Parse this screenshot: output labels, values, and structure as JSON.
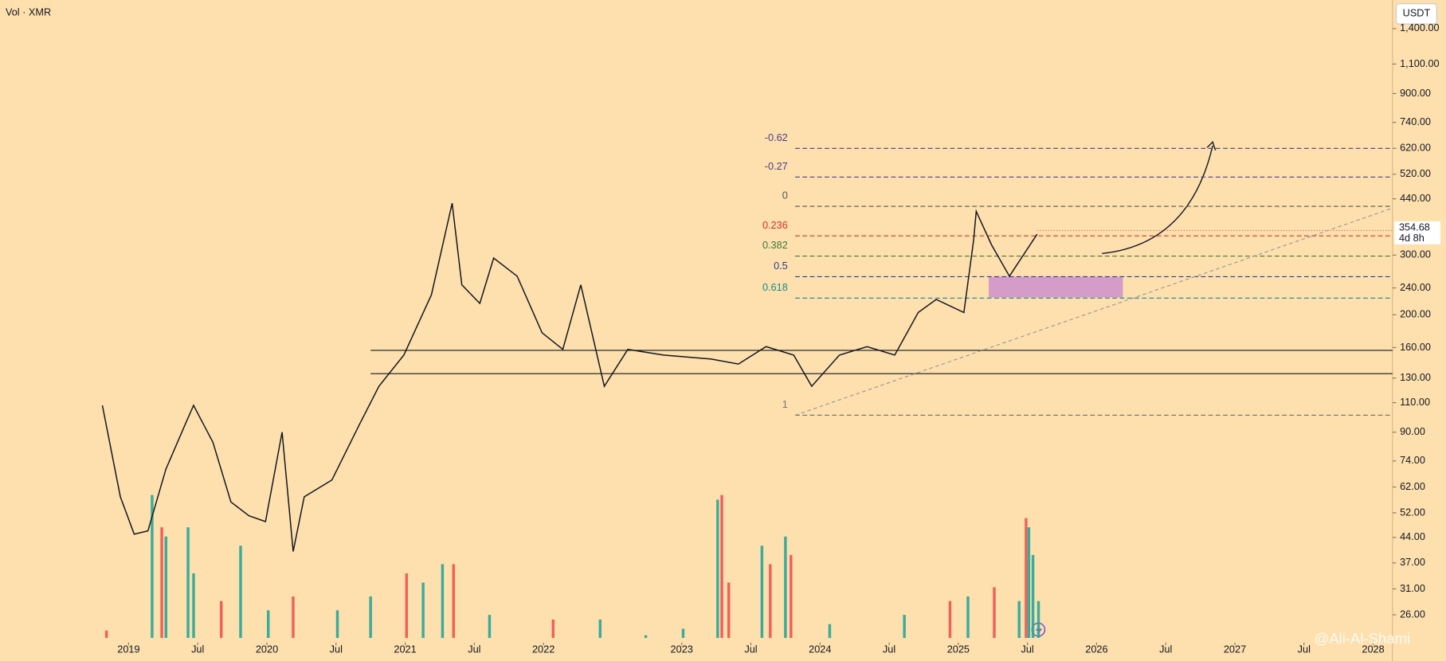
{
  "header": {
    "symbol": "Vol · XMR",
    "currency": "USDT",
    "watermark": "@Ali-Al-Shami"
  },
  "chart_data": {
    "type": "line",
    "color": "#131722",
    "log_scale": true,
    "x": [
      2018.81,
      2018.94,
      2019.04,
      2019.14,
      2019.27,
      2019.41,
      2019.47,
      2019.61,
      2019.74,
      2019.87,
      2019.99,
      2020.11,
      2020.19,
      2020.27,
      2020.47,
      2020.67,
      2020.81,
      2020.99,
      2021.19,
      2021.34,
      2021.41,
      2021.54,
      2021.64,
      2021.81,
      2021.99,
      2022.14,
      2022.27,
      2022.44,
      2022.61,
      2022.87,
      2023.21,
      2023.41,
      2023.61,
      2023.81,
      2023.94,
      2024.14,
      2024.34,
      2024.54,
      2024.71,
      2024.84,
      2025.04,
      2025.11,
      2025.13,
      2025.24,
      2025.37,
      2025.57
    ],
    "values": [
      108,
      58,
      45,
      46,
      70,
      95,
      108,
      84,
      56,
      51,
      49,
      90,
      40,
      58,
      65,
      95,
      123,
      152,
      229,
      427,
      245,
      216,
      294,
      260,
      177,
      158,
      245,
      123,
      158,
      152,
      148,
      143,
      161,
      152,
      123,
      152,
      161,
      152,
      203,
      222,
      203,
      331,
      404,
      322,
      260,
      346
    ],
    "xlim": [
      2018.07,
      2028.14
    ],
    "ylim": [
      21.8,
      1700
    ],
    "yticks": [
      {
        "value": 1400,
        "label": "1,400.00"
      },
      {
        "value": 1100,
        "label": "1,100.00"
      },
      {
        "value": 900,
        "label": "900.00"
      },
      {
        "value": 740,
        "label": "740.00"
      },
      {
        "value": 620,
        "label": "620.00"
      },
      {
        "value": 520,
        "label": "520.00"
      },
      {
        "value": 440,
        "label": "440.00"
      },
      {
        "value": 300,
        "label": "300.00"
      },
      {
        "value": 240,
        "label": "240.00"
      },
      {
        "value": 200,
        "label": "200.00"
      },
      {
        "value": 160,
        "label": "160.00"
      },
      {
        "value": 130,
        "label": "130.00"
      },
      {
        "value": 110,
        "label": "110.00"
      },
      {
        "value": 90,
        "label": "90.00"
      },
      {
        "value": 74,
        "label": "74.00"
      },
      {
        "value": 62,
        "label": "62.00"
      },
      {
        "value": 52,
        "label": "52.00"
      },
      {
        "value": 44,
        "label": "44.00"
      },
      {
        "value": 37,
        "label": "37.00"
      },
      {
        "value": 31,
        "label": "31.00"
      },
      {
        "value": 26,
        "label": "26.00"
      }
    ],
    "xticks": [
      2019,
      {
        "value": 2019.5,
        "label": "Jul"
      },
      2020,
      {
        "value": 2020.5,
        "label": "Jul"
      },
      2021,
      {
        "value": 2021.5,
        "label": "Jul"
      },
      2022,
      2023,
      {
        "value": 2023.5,
        "label": "Jul"
      },
      2024,
      {
        "value": 2024.5,
        "label": "Jul"
      },
      2025,
      {
        "value": 2025.5,
        "label": "Jul"
      },
      2026,
      {
        "value": 2026.5,
        "label": "Jul"
      },
      2027,
      {
        "value": 2027.5,
        "label": "Jul"
      },
      2028
    ],
    "volume": {
      "vlim": [
        0,
        160
      ],
      "x": [
        2018.84,
        2019.17,
        2019.24,
        2019.27,
        2019.43,
        2019.47,
        2019.67,
        2019.81,
        2020.01,
        2020.19,
        2020.51,
        2020.75,
        2021.01,
        2021.13,
        2021.27,
        2021.35,
        2021.61,
        2022.07,
        2022.41,
        2022.74,
        2023.01,
        2023.26,
        2023.29,
        2023.34,
        2023.58,
        2023.64,
        2023.75,
        2023.79,
        2024.07,
        2024.61,
        2024.94,
        2025.07,
        2025.26,
        2025.44,
        2025.49,
        2025.51,
        2025.54,
        2025.58
      ],
      "values": [
        8,
        155,
        120,
        110,
        120,
        70,
        40,
        100,
        30,
        45,
        30,
        45,
        70,
        60,
        80,
        80,
        25,
        20,
        20,
        3,
        10,
        150,
        155,
        60,
        100,
        80,
        110,
        90,
        15,
        25,
        40,
        45,
        55,
        40,
        130,
        120,
        90,
        40
      ],
      "colors": [
        "#ef5350",
        "#26a69a",
        "#ef5350",
        "#26a69a",
        "#26a69a",
        "#26a69a",
        "#ef5350",
        "#26a69a",
        "#26a69a",
        "#ef5350",
        "#26a69a",
        "#26a69a",
        "#ef5350",
        "#26a69a",
        "#26a69a",
        "#ef5350",
        "#26a69a",
        "#ef5350",
        "#26a69a",
        "#26a69a",
        "#26a69a",
        "#26a69a",
        "#ef5350",
        "#ef5350",
        "#26a69a",
        "#ef5350",
        "#26a69a",
        "#ef5350",
        "#26a69a",
        "#26a69a",
        "#ef5350",
        "#26a69a",
        "#ef5350",
        "#26a69a",
        "#ef5350",
        "#26a69a",
        "#26a69a",
        "#26a69a"
      ]
    },
    "fib_start": 2023.82,
    "fib_levels": [
      {
        "ratio": -0.62,
        "value": 620,
        "color": "#4a3a8c"
      },
      {
        "ratio": -0.27,
        "value": 510,
        "color": "#4a3a8c"
      },
      {
        "ratio": 0,
        "value": 418,
        "color": "#555555"
      },
      {
        "ratio": 0.236,
        "value": 342,
        "color": "#d32f2f"
      },
      {
        "ratio": 0.382,
        "value": 298,
        "color": "#3c7a36"
      },
      {
        "ratio": 0.5,
        "value": 259,
        "color": "#2d3a8c"
      },
      {
        "ratio": 0.618,
        "value": 224,
        "color": "#0f8c8c"
      },
      {
        "ratio": 1,
        "value": 101,
        "color": "#777777"
      }
    ],
    "levels_start": 2020.75,
    "levels": [
      157,
      134
    ],
    "zone": {
      "x": [
        2025.22,
        2026.19
      ],
      "y": [
        225,
        259
      ],
      "color": "#d59bc9"
    },
    "trendline": {
      "x": [
        2023.82,
        2028.14
      ],
      "y": [
        101,
        413
      ]
    },
    "last_price": {
      "value": 354.68,
      "countdown": "4d 8h"
    }
  }
}
